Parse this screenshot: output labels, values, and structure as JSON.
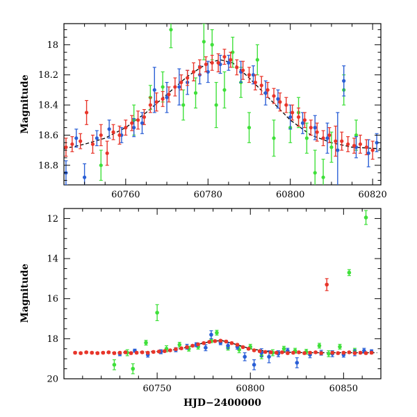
{
  "chart_data": [
    {
      "type": "scatter",
      "panel": "top",
      "title": "",
      "xlabel": "",
      "ylabel": "Magnitude",
      "xlim": [
        60745,
        60822
      ],
      "ylim": [
        18.93,
        17.86
      ],
      "y_inverted": true,
      "grid": false,
      "legend": "none",
      "x_ticks": [
        60760,
        60780,
        60800,
        60820
      ],
      "x_tick_labels": [
        "60760",
        "60780",
        "60800",
        "60820"
      ],
      "y_ticks": [
        18,
        18.2,
        18.4,
        18.6,
        18.8
      ],
      "y_tick_labels": [
        "18",
        "18.2",
        "18.4",
        "18.6",
        "18.8"
      ],
      "model_curve": {
        "color": "#000000",
        "x": [
          60745,
          60750,
          60755,
          60760,
          60765,
          60770,
          60775,
          60780,
          60783,
          60786,
          60790,
          60795,
          60800,
          60805,
          60810,
          60815,
          60822
        ],
        "y": [
          18.69,
          18.66,
          18.62,
          18.55,
          18.45,
          18.33,
          18.21,
          18.12,
          18.1,
          18.12,
          18.22,
          18.36,
          18.5,
          18.6,
          18.65,
          18.68,
          18.69
        ]
      },
      "series": [
        {
          "color": "#e8352a",
          "x": [
            60745.5,
            60747,
            60749,
            60750.5,
            60752,
            60754,
            60755.5,
            60757,
            60758.5,
            60760,
            60761.5,
            60763,
            60764.5,
            60766,
            60767.5,
            60769,
            60770.5,
            60772,
            60773.5,
            60775,
            60776.5,
            60778,
            60779.5,
            60781,
            60782.5,
            60784,
            60785.5,
            60787,
            60788.5,
            60790,
            60791.5,
            60793,
            60794.5,
            60796,
            60797.5,
            60799,
            60800.5,
            60802,
            60803.5,
            60805,
            60806.5,
            60808,
            60809.5,
            60811,
            60812.5,
            60814,
            60815.5,
            60817,
            60818.5,
            60820
          ],
          "y": [
            18.68,
            18.66,
            18.64,
            18.45,
            18.66,
            18.6,
            18.72,
            18.58,
            18.6,
            18.55,
            18.52,
            18.5,
            18.48,
            18.4,
            18.38,
            18.36,
            18.33,
            18.28,
            18.25,
            18.22,
            18.18,
            18.15,
            18.13,
            18.12,
            18.12,
            18.08,
            18.1,
            18.15,
            18.17,
            18.2,
            18.25,
            18.27,
            18.3,
            18.34,
            18.38,
            18.4,
            18.45,
            18.48,
            18.5,
            18.55,
            18.58,
            18.62,
            18.6,
            18.64,
            18.64,
            18.66,
            18.67,
            18.66,
            18.68,
            18.7
          ],
          "err": [
            0.06,
            0.05,
            0.05,
            0.08,
            0.06,
            0.07,
            0.08,
            0.05,
            0.06,
            0.05,
            0.05,
            0.06,
            0.05,
            0.05,
            0.06,
            0.05,
            0.05,
            0.06,
            0.05,
            0.05,
            0.06,
            0.05,
            0.05,
            0.05,
            0.06,
            0.05,
            0.05,
            0.05,
            0.06,
            0.05,
            0.05,
            0.06,
            0.05,
            0.05,
            0.06,
            0.05,
            0.05,
            0.06,
            0.05,
            0.05,
            0.06,
            0.05,
            0.05,
            0.1,
            0.06,
            0.05,
            0.05,
            0.06,
            0.05,
            0.06
          ]
        },
        {
          "color": "#2a5fd6",
          "x": [
            60745.5,
            60748,
            60750,
            60753,
            60756,
            60759,
            60762,
            60764,
            60767,
            60770,
            60773,
            60775,
            60778,
            60780,
            60783,
            60785,
            60788,
            60791,
            60794,
            60797,
            60800,
            60803,
            60806,
            60809,
            60811.5,
            60813,
            60816,
            60819,
            60821
          ],
          "y": [
            18.85,
            18.62,
            18.88,
            18.62,
            18.56,
            18.6,
            18.55,
            18.52,
            18.3,
            18.35,
            18.28,
            18.25,
            18.2,
            18.18,
            18.13,
            18.12,
            18.18,
            18.2,
            18.32,
            18.36,
            18.48,
            18.52,
            18.55,
            18.62,
            18.7,
            18.24,
            18.68,
            18.72,
            18.65
          ],
          "err": [
            0.08,
            0.06,
            0.09,
            0.05,
            0.06,
            0.05,
            0.06,
            0.07,
            0.15,
            0.1,
            0.12,
            0.08,
            0.06,
            0.07,
            0.06,
            0.05,
            0.07,
            0.06,
            0.08,
            0.06,
            0.08,
            0.07,
            0.08,
            0.1,
            0.25,
            0.1,
            0.07,
            0.09,
            0.06
          ]
        },
        {
          "color": "#3fe03a",
          "x": [
            60754,
            60762,
            60766,
            60769,
            60771,
            60774,
            60777,
            60779,
            60781,
            60782,
            60784,
            60786,
            60788,
            60790,
            60792,
            60796,
            60800,
            60802,
            60804,
            60806,
            60808,
            60810,
            60813,
            60816
          ],
          "y": [
            18.8,
            18.5,
            18.35,
            18.28,
            17.9,
            18.4,
            18.32,
            17.98,
            18.0,
            18.4,
            18.3,
            18.05,
            18.25,
            18.55,
            18.1,
            18.62,
            18.55,
            18.45,
            18.62,
            18.85,
            18.88,
            18.68,
            18.3,
            18.6
          ],
          "err": [
            0.1,
            0.1,
            0.08,
            0.1,
            0.12,
            0.1,
            0.1,
            0.12,
            0.1,
            0.15,
            0.12,
            0.1,
            0.1,
            0.1,
            0.1,
            0.12,
            0.1,
            0.1,
            0.1,
            0.15,
            0.12,
            0.1,
            0.1,
            0.1
          ]
        }
      ]
    },
    {
      "type": "scatter",
      "panel": "bottom",
      "title": "",
      "xlabel": "HJD−2400000",
      "ylabel": "Magnitude",
      "xlim": [
        60700,
        60870
      ],
      "ylim": [
        20,
        11.5
      ],
      "y_inverted": true,
      "grid": false,
      "legend": "none",
      "x_ticks": [
        60750,
        60800,
        60850
      ],
      "x_tick_labels": [
        "60750",
        "60800",
        "60850"
      ],
      "y_ticks": [
        12,
        14,
        16,
        18,
        20
      ],
      "y_tick_labels": [
        "12",
        "14",
        "16",
        "18",
        "20"
      ],
      "model_curve": {
        "color": "#000000",
        "x": [
          60705,
          60730,
          60755,
          60765,
          60775,
          60780,
          60785,
          60790,
          60800,
          60810,
          60830,
          60868
        ],
        "y": [
          18.7,
          18.7,
          18.62,
          18.45,
          18.21,
          18.12,
          18.1,
          18.22,
          18.5,
          18.65,
          18.7,
          18.7
        ]
      },
      "series": [
        {
          "color": "#e8352a",
          "x": [
            60706,
            60709,
            60712,
            60715,
            60718,
            60721,
            60724,
            60727,
            60730,
            60733,
            60736,
            60739,
            60742,
            60745,
            60748,
            60751,
            60754,
            60757,
            60760,
            60763,
            60766,
            60769,
            60772,
            60775,
            60778,
            60781,
            60784,
            60787,
            60790,
            60793,
            60796,
            60799,
            60802,
            60805,
            60808,
            60811,
            60814,
            60817,
            60820,
            60823,
            60826,
            60829,
            60832,
            60835,
            60838,
            60841,
            60844,
            60847,
            60850,
            60853,
            60856,
            60859,
            60862,
            60865
          ],
          "y": [
            18.7,
            18.72,
            18.68,
            18.7,
            18.72,
            18.7,
            18.68,
            18.72,
            18.7,
            18.68,
            18.72,
            18.7,
            18.68,
            18.7,
            18.66,
            18.64,
            18.62,
            18.58,
            18.52,
            18.48,
            18.42,
            18.35,
            18.28,
            18.22,
            18.16,
            18.12,
            18.1,
            18.14,
            18.22,
            18.3,
            18.42,
            18.5,
            18.58,
            18.62,
            18.66,
            18.68,
            18.7,
            18.68,
            18.72,
            18.7,
            18.68,
            18.72,
            18.7,
            18.68,
            18.72,
            15.3,
            18.7,
            18.72,
            18.7,
            18.68,
            18.72,
            18.7,
            18.72,
            18.7
          ],
          "err": [
            0.05,
            0.05,
            0.05,
            0.05,
            0.05,
            0.05,
            0.05,
            0.05,
            0.05,
            0.05,
            0.05,
            0.05,
            0.05,
            0.05,
            0.05,
            0.05,
            0.05,
            0.05,
            0.05,
            0.05,
            0.05,
            0.05,
            0.05,
            0.05,
            0.05,
            0.05,
            0.05,
            0.05,
            0.05,
            0.05,
            0.05,
            0.05,
            0.05,
            0.05,
            0.05,
            0.05,
            0.05,
            0.05,
            0.05,
            0.05,
            0.05,
            0.05,
            0.05,
            0.05,
            0.05,
            0.3,
            0.05,
            0.05,
            0.05,
            0.05,
            0.05,
            0.05,
            0.05,
            0.05
          ]
        },
        {
          "color": "#2a5fd6",
          "x": [
            60730,
            60738,
            60745,
            60752,
            60760,
            60766,
            60771,
            60776,
            60779,
            60784,
            60788,
            60793,
            60797,
            60802,
            60806,
            60810,
            60815,
            60820,
            60825,
            60832,
            60838,
            60844,
            60850,
            60856,
            60861,
            60865
          ],
          "y": [
            18.75,
            18.6,
            18.8,
            18.65,
            18.55,
            18.4,
            18.3,
            18.45,
            17.8,
            18.2,
            18.35,
            18.4,
            18.9,
            19.3,
            18.7,
            18.9,
            18.75,
            18.6,
            19.2,
            18.8,
            18.7,
            18.75,
            18.8,
            18.7,
            18.6,
            18.65
          ],
          "err": [
            0.1,
            0.08,
            0.12,
            0.1,
            0.1,
            0.12,
            0.1,
            0.15,
            0.2,
            0.1,
            0.15,
            0.12,
            0.2,
            0.25,
            0.2,
            0.3,
            0.15,
            0.12,
            0.25,
            0.15,
            0.12,
            0.15,
            0.12,
            0.15,
            0.12,
            0.1
          ]
        },
        {
          "color": "#3fe03a",
          "x": [
            60727,
            60734,
            60737,
            60744,
            60750,
            60755,
            60762,
            60767,
            60772,
            60779,
            60782,
            60788,
            60794,
            60800,
            60806,
            60812,
            60818,
            60824,
            60830,
            60837,
            60842,
            60848,
            60853,
            60856,
            60862
          ],
          "y": [
            19.3,
            18.7,
            19.5,
            18.2,
            16.7,
            18.5,
            18.3,
            18.5,
            18.4,
            18.1,
            17.7,
            18.45,
            18.55,
            18.4,
            18.85,
            18.7,
            18.5,
            18.6,
            18.65,
            18.35,
            18.75,
            18.4,
            14.7,
            18.6,
            11.95
          ],
          "err": [
            0.25,
            0.15,
            0.25,
            0.12,
            0.4,
            0.15,
            0.12,
            0.12,
            0.12,
            0.1,
            0.12,
            0.12,
            0.15,
            0.12,
            0.15,
            0.15,
            0.12,
            0.12,
            0.12,
            0.12,
            0.15,
            0.12,
            0.15,
            0.12,
            0.35
          ]
        }
      ]
    }
  ]
}
